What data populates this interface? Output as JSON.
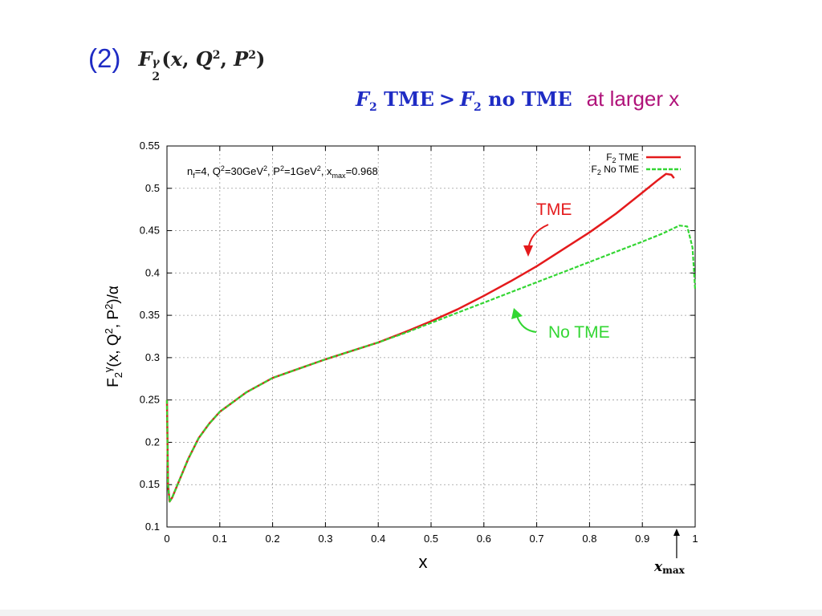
{
  "heading": {
    "number": "(2)"
  },
  "comparison": {
    "lhs_base": "F",
    "lhs_sub": "2",
    "lhs_word": "TME",
    "relation": ">",
    "rhs_base": "F",
    "rhs_sub": "2",
    "rhs_word": "no TME",
    "note": "at larger x"
  },
  "colors": {
    "heading_blue": "#1f2cc4",
    "note_magenta": "#b0137a",
    "tme_red": "#e41a1c",
    "no_tme_green": "#33d633"
  },
  "chart_data": {
    "type": "line",
    "params_text": "n_f=4, Q^2=30GeV^2, P^2=1GeV^2, x_max=0.968",
    "xlabel": "x",
    "ylabel": "F2γ(x, Q2, P2)/α",
    "xlim": [
      0,
      1
    ],
    "ylim": [
      0.1,
      0.55
    ],
    "xticks": [
      0,
      0.1,
      0.2,
      0.3,
      0.4,
      0.5,
      0.6,
      0.7,
      0.8,
      0.9,
      1
    ],
    "yticks": [
      0.1,
      0.15,
      0.2,
      0.25,
      0.3,
      0.35,
      0.4,
      0.45,
      0.5,
      0.55
    ],
    "grid": true,
    "legend_position": "top-right",
    "series": [
      {
        "name": "F2 TME",
        "style": "solid",
        "color": "#e41a1c",
        "x": [
          0.0,
          0.002,
          0.005,
          0.01,
          0.02,
          0.04,
          0.06,
          0.08,
          0.1,
          0.15,
          0.2,
          0.25,
          0.3,
          0.35,
          0.4,
          0.45,
          0.5,
          0.55,
          0.6,
          0.65,
          0.7,
          0.75,
          0.8,
          0.85,
          0.9,
          0.93,
          0.945,
          0.955,
          0.96
        ],
        "y": [
          0.25,
          0.15,
          0.13,
          0.135,
          0.15,
          0.18,
          0.205,
          0.222,
          0.236,
          0.259,
          0.276,
          0.287,
          0.298,
          0.308,
          0.318,
          0.33,
          0.343,
          0.357,
          0.373,
          0.39,
          0.408,
          0.428,
          0.448,
          0.47,
          0.495,
          0.51,
          0.517,
          0.516,
          0.512
        ]
      },
      {
        "name": "F2 No TME",
        "style": "dashed",
        "color": "#33d633",
        "x": [
          0.0,
          0.002,
          0.005,
          0.01,
          0.02,
          0.04,
          0.06,
          0.08,
          0.1,
          0.15,
          0.2,
          0.25,
          0.3,
          0.35,
          0.4,
          0.45,
          0.5,
          0.55,
          0.6,
          0.65,
          0.7,
          0.75,
          0.8,
          0.85,
          0.9,
          0.94,
          0.97,
          0.985,
          0.995,
          1.0
        ],
        "y": [
          0.25,
          0.15,
          0.13,
          0.135,
          0.15,
          0.18,
          0.205,
          0.222,
          0.236,
          0.259,
          0.276,
          0.287,
          0.298,
          0.308,
          0.318,
          0.329,
          0.341,
          0.353,
          0.365,
          0.377,
          0.389,
          0.401,
          0.413,
          0.425,
          0.437,
          0.447,
          0.456,
          0.455,
          0.43,
          0.38
        ]
      }
    ],
    "annotations": [
      {
        "text": "TME",
        "color": "#e41a1c"
      },
      {
        "text": "No TME",
        "color": "#33d633"
      }
    ],
    "marker": {
      "label": "x",
      "sub": "max",
      "x": 0.968
    }
  }
}
